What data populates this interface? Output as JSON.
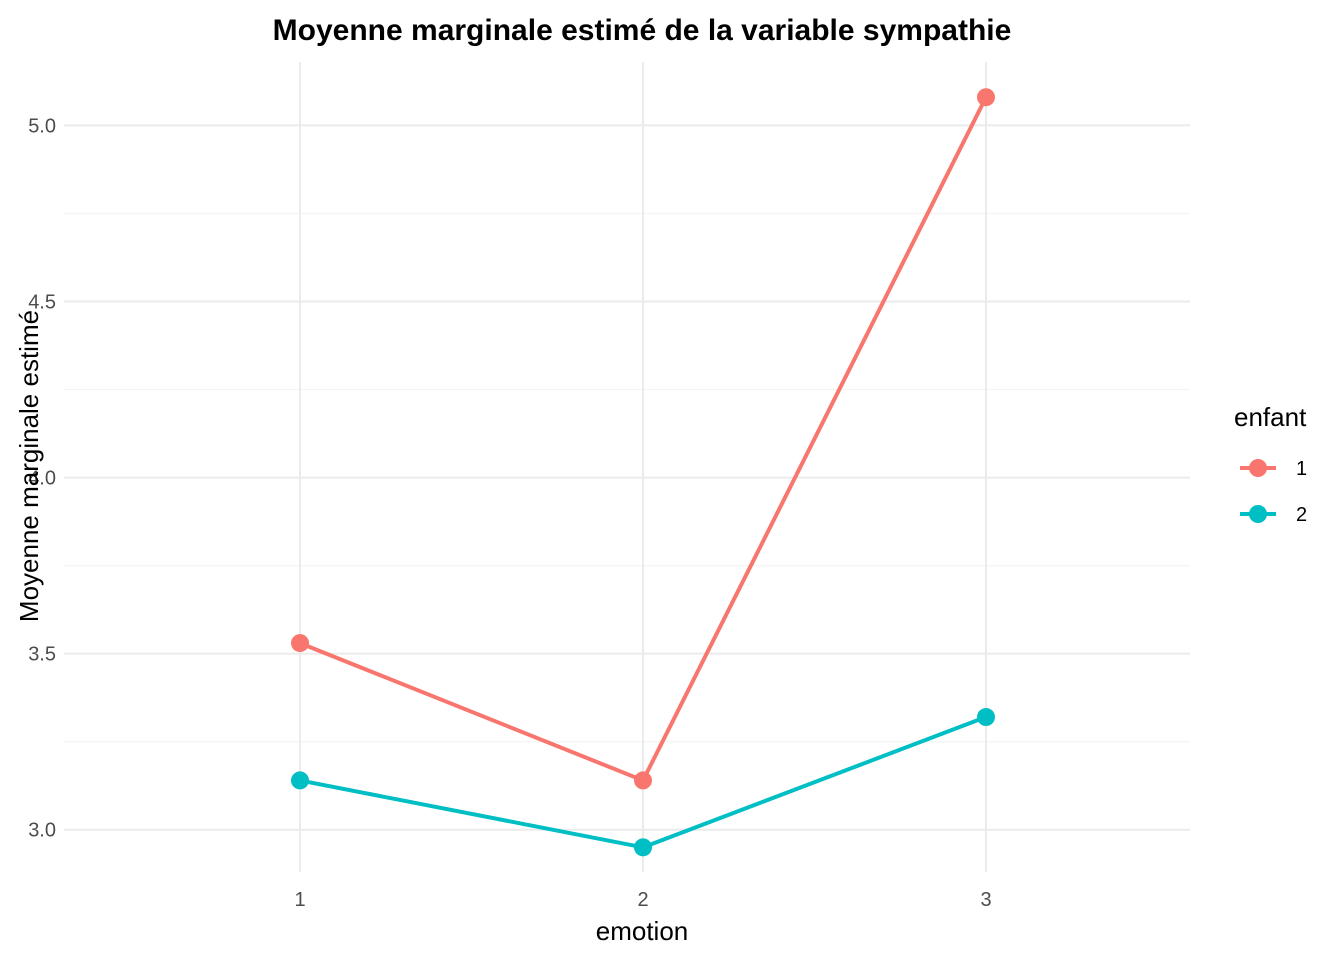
{
  "chart_data": {
    "type": "line",
    "title": "Moyenne marginale estimé de la variable sympathie",
    "xlabel": "emotion",
    "ylabel": "Moyenne marginale estimé",
    "categories": [
      "1",
      "2",
      "3"
    ],
    "ylim": [
      2.88,
      5.18
    ],
    "yticks": [
      3.0,
      3.5,
      4.0,
      4.5,
      5.0
    ],
    "ytick_labels": [
      "3.0",
      "3.5",
      "4.0",
      "4.5",
      "5.0"
    ],
    "grid": true,
    "legend": {
      "title": "enfant",
      "placement": "right"
    },
    "series": [
      {
        "name": "1",
        "color": "#F8766D",
        "values": [
          3.53,
          3.14,
          5.08
        ]
      },
      {
        "name": "2",
        "color": "#00BFC4",
        "values": [
          3.14,
          2.95,
          3.32
        ]
      }
    ]
  }
}
